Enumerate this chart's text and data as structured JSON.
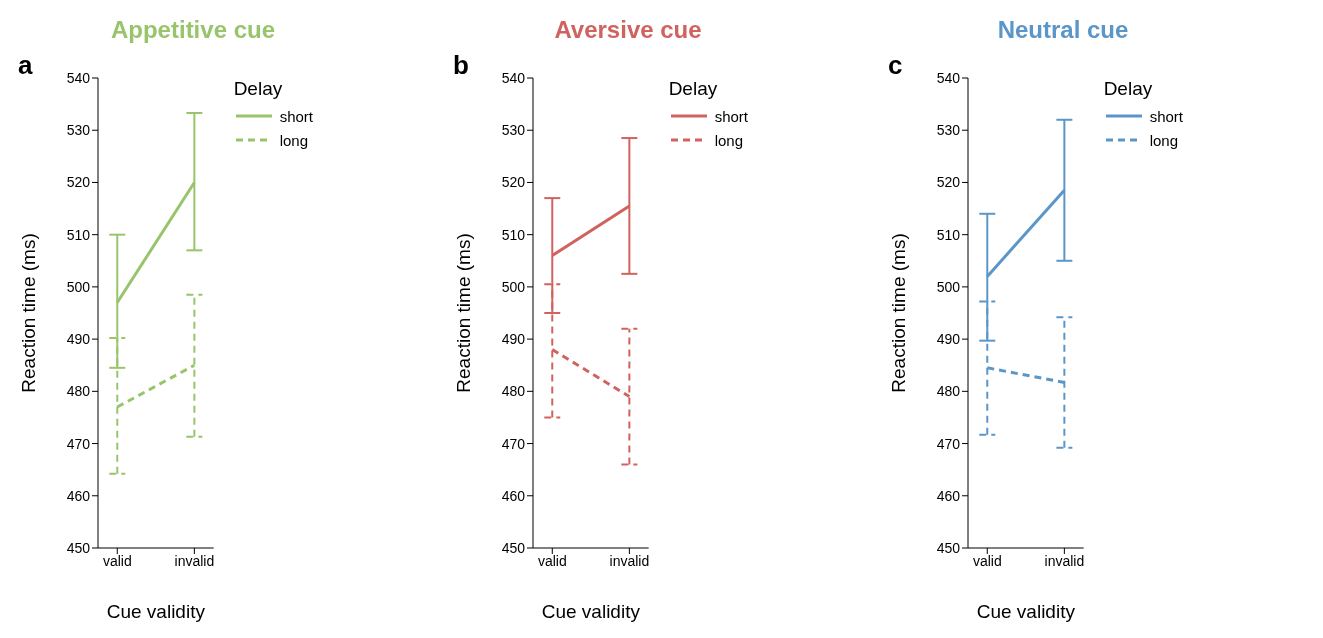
{
  "chart_data": [
    {
      "type": "line",
      "title": "Appetitive cue",
      "xlabel": "Cue validity",
      "ylabel": "Reaction time (ms)",
      "legend_title": "Delay",
      "legend": "top right",
      "marker": "none",
      "annotations": [
        "a"
      ],
      "categories": [
        "valid",
        "invalid"
      ],
      "ylim": [
        450,
        540
      ],
      "yticks": [
        450,
        460,
        470,
        480,
        490,
        500,
        510,
        520,
        530,
        540
      ],
      "series": [
        {
          "name": "short",
          "color": "#98c46b",
          "line_style": "solid",
          "values": [
            497,
            520
          ],
          "errors": [
            [
              484.5,
              510
            ],
            [
              507,
              533.3
            ]
          ]
        },
        {
          "name": "long",
          "color": "#98c46b",
          "line_style": "dashed",
          "values": [
            477,
            485
          ],
          "errors": [
            [
              464.2,
              490.2
            ],
            [
              471.3,
              498.5
            ]
          ]
        }
      ]
    },
    {
      "type": "line",
      "title": "Aversive cue",
      "xlabel": "Cue validity",
      "ylabel": "Reaction time (ms)",
      "legend_title": "Delay",
      "legend": "top right",
      "marker": "none",
      "annotations": [
        "b"
      ],
      "categories": [
        "valid",
        "invalid"
      ],
      "ylim": [
        450,
        540
      ],
      "yticks": [
        450,
        460,
        470,
        480,
        490,
        500,
        510,
        520,
        530,
        540
      ],
      "series": [
        {
          "name": "short",
          "color": "#d0625f",
          "line_style": "solid",
          "values": [
            506,
            515.5
          ],
          "errors": [
            [
              495,
              517
            ],
            [
              502.5,
              528.5
            ]
          ]
        },
        {
          "name": "long",
          "color": "#d0625f",
          "line_style": "dashed",
          "values": [
            488,
            479
          ],
          "errors": [
            [
              475,
              500.5
            ],
            [
              466,
              492
            ]
          ]
        }
      ]
    },
    {
      "type": "line",
      "title": "Neutral cue",
      "xlabel": "Cue validity",
      "ylabel": "Reaction time (ms)",
      "legend_title": "Delay",
      "legend": "top right",
      "marker": "none",
      "annotations": [
        "c"
      ],
      "categories": [
        "valid",
        "invalid"
      ],
      "ylim": [
        450,
        540
      ],
      "yticks": [
        450,
        460,
        470,
        480,
        490,
        500,
        510,
        520,
        530,
        540
      ],
      "series": [
        {
          "name": "short",
          "color": "#5b96c8",
          "line_style": "solid",
          "values": [
            502,
            518.5
          ],
          "errors": [
            [
              489.7,
              514
            ],
            [
              505,
              532
            ]
          ]
        },
        {
          "name": "long",
          "color": "#5b96c8",
          "line_style": "dashed",
          "values": [
            484.5,
            481.7
          ],
          "errors": [
            [
              471.7,
              497.2
            ],
            [
              469.2,
              494.2
            ]
          ]
        }
      ]
    }
  ]
}
